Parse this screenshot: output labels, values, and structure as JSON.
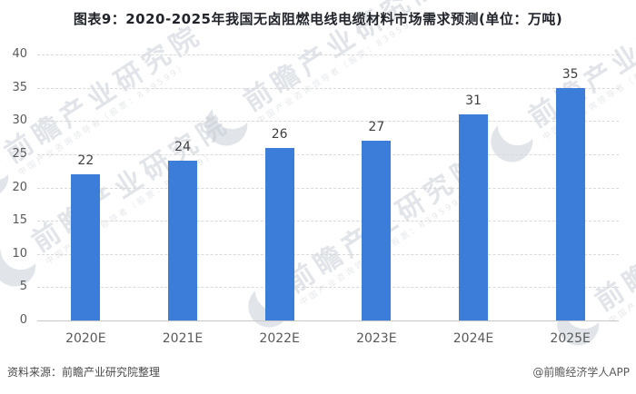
{
  "title": "图表9：2020-2025年我国无卤阻燃电线电缆材料市场需求预测(单位：万吨)",
  "footer": {
    "source": "资料来源：前瞻产业研究院整理",
    "credit": "@前瞻经济学人APP"
  },
  "watermark": {
    "brand": "前瞻产业研究院",
    "tagline": "中国产业咨询领导者（股票：839599）"
  },
  "colors": {
    "bar": "#3d7dda",
    "grid": "#d9d9d9",
    "baseline": "#c7c7c7",
    "axis_text": "#595959",
    "value_text": "#404040",
    "title_text": "#21242b",
    "watermark": "#c9ced6"
  },
  "chart_data": {
    "type": "bar",
    "title": "图表9：2020-2025年我国无卤阻燃电线电缆材料市场需求预测",
    "unit": "万吨",
    "categories": [
      "2020E",
      "2021E",
      "2022E",
      "2023E",
      "2024E",
      "2025E"
    ],
    "values": [
      22,
      24,
      26,
      27,
      31,
      35
    ],
    "xlabel": "",
    "ylabel": "",
    "ylim": [
      0,
      40
    ],
    "yticks": [
      0,
      5,
      10,
      15,
      20,
      25,
      30,
      35,
      40
    ],
    "grid": true,
    "legend": false,
    "value_labels": true
  }
}
